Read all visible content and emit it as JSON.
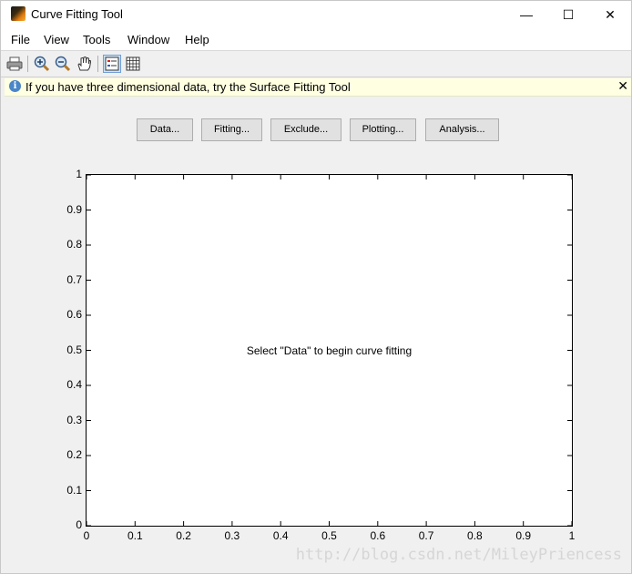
{
  "window": {
    "title": "Curve Fitting Tool",
    "controls": {
      "minimize": "—",
      "maximize": "☐",
      "close": "✕"
    }
  },
  "menu": [
    "File",
    "View",
    "Tools",
    "Window",
    "Help"
  ],
  "toolbar": {
    "icons": [
      "print-icon",
      "zoom-in-icon",
      "zoom-out-icon",
      "pan-hand-icon",
      "legend-icon",
      "grid-icon"
    ]
  },
  "infobar": {
    "text": "If you have three dimensional data, try the Surface Fitting Tool",
    "close": "✕"
  },
  "buttons": [
    "Data...",
    "Fitting...",
    "Exclude...",
    "Plotting...",
    "Analysis..."
  ],
  "plot": {
    "message": "Select \"Data\" to begin curve fitting",
    "x_ticks": [
      "0",
      "0.1",
      "0.2",
      "0.3",
      "0.4",
      "0.5",
      "0.6",
      "0.7",
      "0.8",
      "0.9",
      "1"
    ],
    "y_ticks": [
      "0",
      "0.1",
      "0.2",
      "0.3",
      "0.4",
      "0.5",
      "0.6",
      "0.7",
      "0.8",
      "0.9",
      "1"
    ],
    "xlim": [
      0,
      1
    ],
    "ylim": [
      0,
      1
    ]
  },
  "watermark": "http://blog.csdn.net/MileyPriencess"
}
